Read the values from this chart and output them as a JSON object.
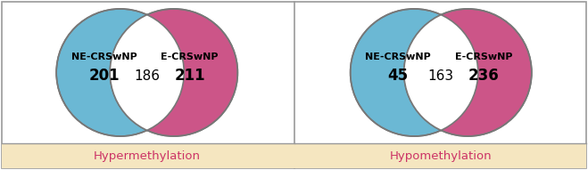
{
  "diagrams": [
    {
      "title": "Hypermethylation",
      "left_label": "NE-CRSwNP",
      "right_label": "E-CRSwNP",
      "left_value": "201",
      "overlap_value": "186",
      "right_value": "211",
      "left_color": "#6BB8D4",
      "right_color": "#CC5588"
    },
    {
      "title": "Hypomethylation",
      "left_label": "NE-CRSwNP",
      "right_label": "E-CRSwNP",
      "left_value": "45",
      "overlap_value": "163",
      "right_value": "236",
      "left_color": "#6BB8D4",
      "right_color": "#CC5588"
    }
  ],
  "background_color": "#FFFFFF",
  "footer_color": "#F5E6C0",
  "border_color": "#999999",
  "title_color": "#CC3366",
  "label_color": "#000000",
  "value_color": "#000000",
  "title_fontsize": 9.5,
  "label_fontsize": 8,
  "value_fontsize": 12,
  "overlap_value_fontsize": 11
}
